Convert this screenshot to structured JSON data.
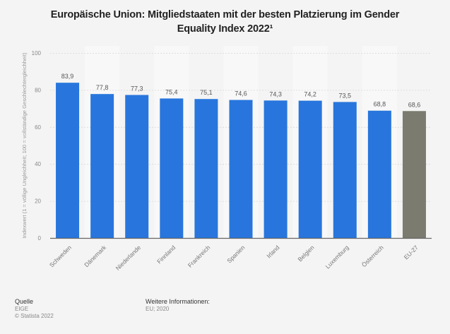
{
  "chart_data": {
    "type": "bar",
    "title": "Europäische Union: Mitgliedstaaten mit der besten Platzierung im Gender Equality Index 2022¹",
    "xlabel": "",
    "ylabel": "Indexwert (1 = völlige Ungleichheit; 100 = vollständige Geschlechtergleichheit)",
    "ylim": [
      0,
      100
    ],
    "yticks": [
      0,
      20,
      40,
      60,
      80,
      100
    ],
    "grid": true,
    "categories": [
      "Schweden",
      "Dänemark",
      "Niederlande",
      "Finnland",
      "Frankreich",
      "Spanien",
      "Irland",
      "Belgien",
      "Luxemburg",
      "Österreich",
      "EU-27"
    ],
    "values": [
      83.9,
      77.8,
      77.3,
      75.4,
      75.1,
      74.6,
      74.3,
      74.2,
      73.5,
      68.8,
      68.6
    ],
    "value_labels": [
      "83,9",
      "77,8",
      "77,3",
      "75,4",
      "75,1",
      "74,6",
      "74,3",
      "74,2",
      "73,5",
      "68,8",
      "68,6"
    ],
    "colors": {
      "default": "#2876dd",
      "highlight": "#7c7b6f",
      "highlight_category": "EU-27"
    }
  },
  "footer": {
    "source_heading": "Quelle",
    "source_lines": [
      "EIGE",
      "© Statista 2022"
    ],
    "info_heading": "Weitere Informationen:",
    "info_lines": [
      "EU; 2020"
    ]
  }
}
